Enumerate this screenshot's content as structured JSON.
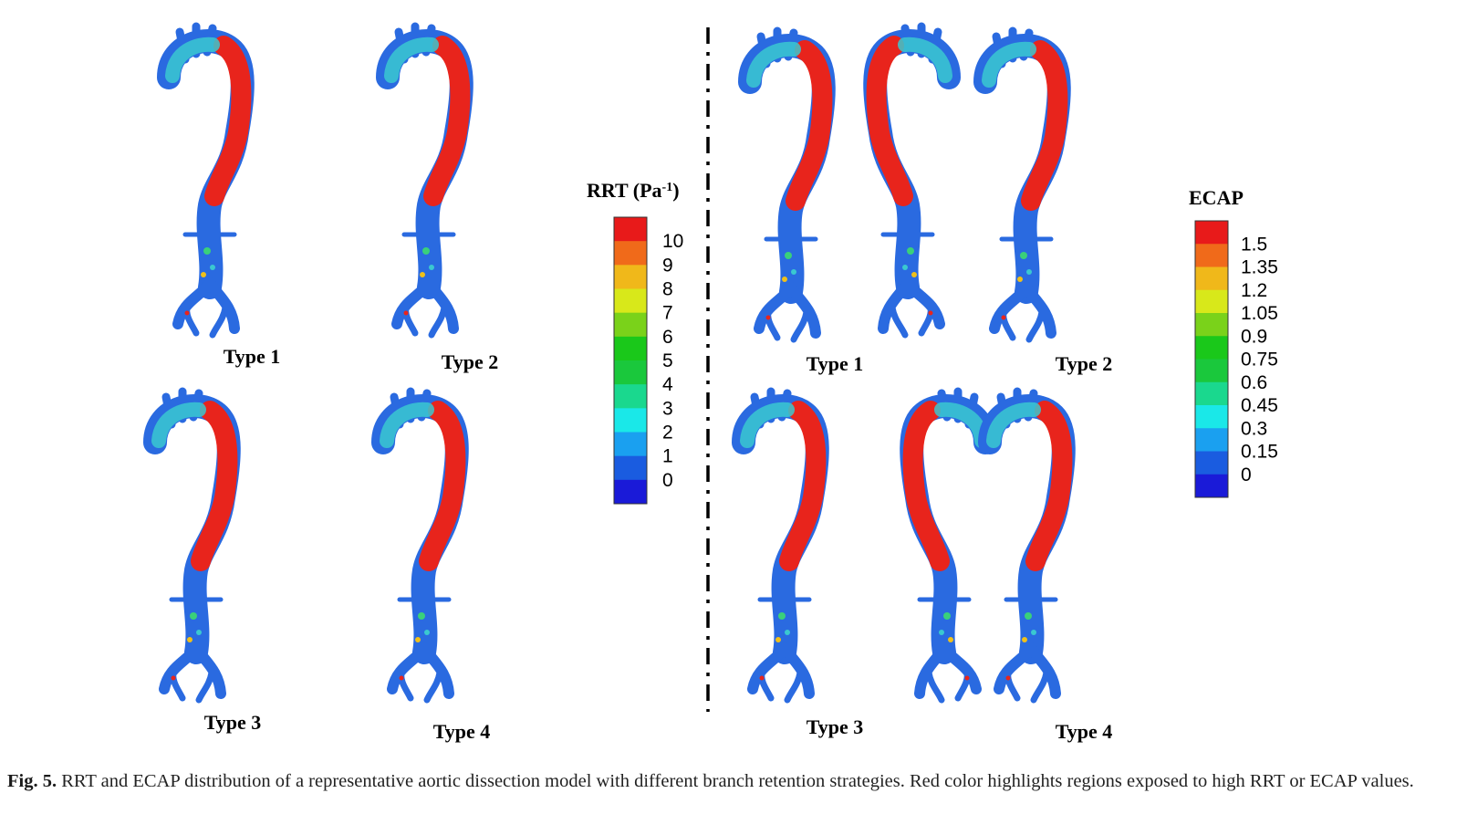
{
  "colors": {
    "low": "#2a5fd6",
    "mid": "#3ad0c8",
    "high": "#e8241c",
    "legend_scale": [
      "#1a1ad8",
      "#1a5ce0",
      "#1aa0f0",
      "#1ae8e8",
      "#1ad88e",
      "#1ac83c",
      "#1ac81a",
      "#7ad21a",
      "#d8e81a",
      "#f0b81a",
      "#f06a1a",
      "#e81a1a"
    ]
  },
  "panels": {
    "rrt": {
      "legend": {
        "title_main": "RRT (Pa",
        "title_sup": "-1",
        "title_end": ")",
        "ticks": [
          "10",
          "9",
          "8",
          "7",
          "6",
          "5",
          "4",
          "3",
          "2",
          "1",
          "0"
        ]
      },
      "labels": [
        "Type 1",
        "Type 2",
        "Type 3",
        "Type 4"
      ]
    },
    "ecap": {
      "legend": {
        "title": "ECAP",
        "ticks": [
          "1.5",
          "1.35",
          "1.2",
          "1.05",
          "0.9",
          "0.75",
          "0.6",
          "0.45",
          "0.3",
          "0.15",
          "0"
        ]
      },
      "labels": [
        "Type 1",
        "Type 2",
        "Type 3",
        "Type 4"
      ]
    }
  },
  "caption": {
    "fig_label": "Fig. 5.",
    "text": " RRT and ECAP distribution of a representative aortic dissection model with different branch retention strategies. Red color highlights regions exposed to high RRT or ECAP values."
  }
}
